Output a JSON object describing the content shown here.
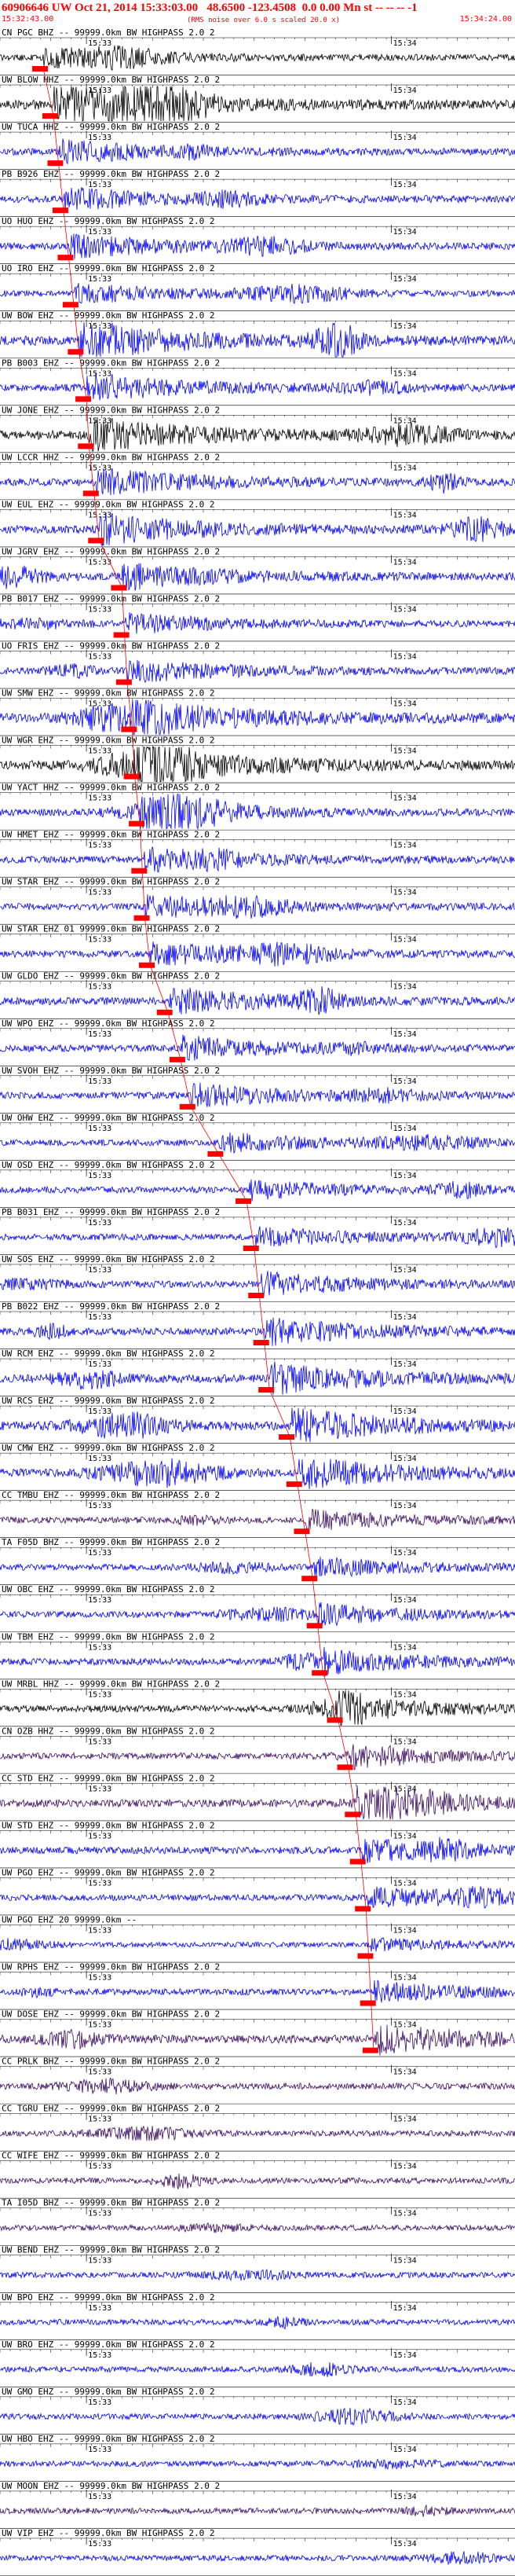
{
  "header": {
    "title": "60906646 UW Oct 21, 2014 15:33:03.00   48.6500 -123.4508  0.0 0.00 Mn st -- -- -- -1",
    "right_marker": "-1",
    "start_time": "15:32:43.00",
    "note": "(RMS noise over 6.0 s scaled 20.0 x)",
    "end_time": "15:34:24.00"
  },
  "chart_data": {
    "type": "line",
    "title": "60906646 UW Oct 21, 2014 15:33:03.00   48.6500 -123.4508  0.0 0.00 Mn st -- -- -- -1",
    "x_range": [
      "15:32:43.00",
      "15:34:24.00"
    ],
    "x_range_seconds": [
      0,
      101
    ],
    "tick_labels": [
      "15:33",
      "15:34"
    ],
    "pick_color": "#ff0000",
    "colors": {
      "black": "#000000",
      "blue": "#0000ff",
      "purple": "#3c0a64"
    },
    "traces": [
      {
        "label": "CN PGC BHZ -- 99999.0km BW HIGHPASS 2.0 2",
        "color": "black",
        "amp": 0.5,
        "pick": 8.5
      },
      {
        "label": "UW BLOW HHZ -- 99999.0km BW HIGHPASS 2.0 2",
        "color": "black",
        "amp": 1.0,
        "pick": 10.5
      },
      {
        "label": "UW TUCA HHZ -- 99999.0km BW HIGHPASS 2.0 2",
        "color": "blue",
        "amp": 0.6,
        "pick": 11.5
      },
      {
        "label": "PB B926 EHZ -- 99999.0km BW HIGHPASS 2.0 2",
        "color": "blue",
        "amp": 0.6,
        "pick": 12.5
      },
      {
        "label": "UO HUO EHZ -- 99999.0km BW HIGHPASS 2.0 2",
        "color": "blue",
        "amp": 0.6,
        "pick": 13.5
      },
      {
        "label": "UO IRO EHZ -- 99999.0km BW HIGHPASS 2.0 2",
        "color": "blue",
        "amp": 0.5,
        "pick": 14.5
      },
      {
        "label": "UW BOW EHZ -- 99999.0km BW HIGHPASS 2.0 2",
        "color": "blue",
        "amp": 1.0,
        "pick": 15.5
      },
      {
        "label": "PB B003 EHZ -- 99999.0km BW HIGHPASS 2.0 2",
        "color": "blue",
        "amp": 0.7,
        "pick": 17.0
      },
      {
        "label": "UW JONE EHZ -- 99999.0km BW HIGHPASS 2.0 2",
        "color": "black",
        "amp": 0.9,
        "pick": 17.5
      },
      {
        "label": "UW LCCR HHZ -- 99999.0km BW HIGHPASS 2.0 2",
        "color": "blue",
        "amp": 0.7,
        "pick": 18.5
      },
      {
        "label": "UW EUL EHZ -- 99999.0km BW HIGHPASS 2.0 2",
        "color": "blue",
        "amp": 0.8,
        "pick": 19.5
      },
      {
        "label": "UW JGRV EHZ -- 99999.0km BW HIGHPASS 2.0 2",
        "color": "blue",
        "amp": 0.7,
        "pick": 24.0
      },
      {
        "label": "PB B017 EHZ -- 99999.0km BW HIGHPASS 2.0 2",
        "color": "blue",
        "amp": 0.5,
        "pick": 24.5
      },
      {
        "label": "UO FRIS EHZ -- 99999.0km BW HIGHPASS 2.0 2",
        "color": "blue",
        "amp": 0.6,
        "pick": 25.0
      },
      {
        "label": "UW SMW EHZ -- 99999.0km BW HIGHPASS 2.0 2",
        "color": "blue",
        "amp": 1.0,
        "pick": 26.0
      },
      {
        "label": "UW WGR EHZ -- 99999.0km BW HIGHPASS 2.0 2",
        "color": "black",
        "amp": 1.0,
        "pick": 26.5
      },
      {
        "label": "UW YACT HHZ -- 99999.0km BW HIGHPASS 2.0 2",
        "color": "blue",
        "amp": 0.6,
        "pick": 27.5
      },
      {
        "label": "UW HMET EHZ -- 99999.0km BW HIGHPASS 2.0 2",
        "color": "blue",
        "amp": 0.6,
        "pick": 28.0
      },
      {
        "label": "UW STAR EHZ -- 99999.0km BW HIGHPASS 2.0 2",
        "color": "blue",
        "amp": 0.6,
        "pick": 28.5
      },
      {
        "label": "UW STAR EHZ 01 99999.0km BW HIGHPASS 2.0 2",
        "color": "blue",
        "amp": 0.6,
        "pick": 29.5
      },
      {
        "label": "UW GLDO EHZ -- 99999.0km BW HIGHPASS 2.0 2",
        "color": "blue",
        "amp": 0.7,
        "pick": 33.0
      },
      {
        "label": "UW WPO EHZ -- 99999.0km BW HIGHPASS 2.0 2",
        "color": "blue",
        "amp": 0.6,
        "pick": 35.5
      },
      {
        "label": "UW SVOH EHZ -- 99999.0km BW HIGHPASS 2.0 2",
        "color": "blue",
        "amp": 0.6,
        "pick": 37.5
      },
      {
        "label": "UW OHW EHZ -- 99999.0km BW HIGHPASS 2.0 2",
        "color": "blue",
        "amp": 0.5,
        "pick": 43.0
      },
      {
        "label": "UW OSD EHZ -- 99999.0km BW HIGHPASS 2.0 2",
        "color": "blue",
        "amp": 0.5,
        "pick": 48.5
      },
      {
        "label": "PB B031 EHZ -- 99999.0km BW HIGHPASS 2.0 2",
        "color": "blue",
        "amp": 0.5,
        "pick": 50.0
      },
      {
        "label": "UW SOS EHZ -- 99999.0km BW HIGHPASS 2.0 2",
        "color": "blue",
        "amp": 0.6,
        "pick": 51.0
      },
      {
        "label": "PB B022 EHZ -- 99999.0km BW HIGHPASS 2.0 2",
        "color": "blue",
        "amp": 0.7,
        "pick": 52.0
      },
      {
        "label": "UW RCM EHZ -- 99999.0km BW HIGHPASS 2.0 2",
        "color": "blue",
        "amp": 0.8,
        "pick": 53.0
      },
      {
        "label": "UW RCS EHZ -- 99999.0km BW HIGHPASS 2.0 2",
        "color": "blue",
        "amp": 0.9,
        "pick": 57.0
      },
      {
        "label": "UW CMW EHZ -- 99999.0km BW HIGHPASS 2.0 2",
        "color": "blue",
        "amp": 0.8,
        "pick": 58.5
      },
      {
        "label": "CC TMBU EHZ -- 99999.0km BW HIGHPASS 2.0 2",
        "color": "purple",
        "amp": 0.5,
        "pick": 60.0
      },
      {
        "label": "TA F05D BHZ -- 99999.0km BW HIGHPASS 2.0 2",
        "color": "blue",
        "amp": 0.5,
        "pick": 61.5
      },
      {
        "label": "UW OBC EHZ -- 99999.0km BW HIGHPASS 2.0 2",
        "color": "blue",
        "amp": 0.5,
        "pick": 62.5
      },
      {
        "label": "UW TBM EHZ -- 99999.0km BW HIGHPASS 2.0 2",
        "color": "blue",
        "amp": 0.6,
        "pick": 63.5
      },
      {
        "label": "UW MRBL HHZ -- 99999.0km BW HIGHPASS 2.0 2",
        "color": "black",
        "amp": 0.6,
        "pick": 66.5
      },
      {
        "label": "CN OZB HHZ -- 99999.0km BW HIGHPASS 2.0 2",
        "color": "purple",
        "amp": 0.5,
        "pick": 68.5
      },
      {
        "label": "CC STD EHZ -- 99999.0km BW HIGHPASS 2.0 2",
        "color": "purple",
        "amp": 0.7,
        "pick": 70.0
      },
      {
        "label": "UW STD EHZ -- 99999.0km BW HIGHPASS 2.0 2",
        "color": "blue",
        "amp": 0.6,
        "pick": 71.0
      },
      {
        "label": "UW PGO EHZ -- 99999.0km BW HIGHPASS 2.0 2",
        "color": "blue",
        "amp": 0.5,
        "pick": 72.0
      },
      {
        "label": "UW PGO EHZ 20 99999.0km --",
        "color": "blue",
        "amp": 0.3,
        "pick": 72.5
      },
      {
        "label": "UW RPHS EHZ -- 99999.0km BW HIGHPASS 2.0 2",
        "color": "blue",
        "amp": 0.5,
        "pick": 73.0
      },
      {
        "label": "UW DOSE EHZ -- 99999.0km BW HIGHPASS 2.0 2",
        "color": "purple",
        "amp": 0.8,
        "pick": 73.5
      },
      {
        "label": "CC PRLK BHZ -- 99999.0km BW HIGHPASS 2.0 2",
        "color": "purple",
        "amp": 0.5,
        "pick": null
      },
      {
        "label": "CC TGRU EHZ -- 99999.0km BW HIGHPASS 2.0 2",
        "color": "purple",
        "amp": 0.4,
        "pick": null
      },
      {
        "label": "CC WIFE EHZ -- 99999.0km BW HIGHPASS 2.0 2",
        "color": "purple",
        "amp": 0.4,
        "pick": null
      },
      {
        "label": "TA I05D BHZ -- 99999.0km BW HIGHPASS 2.0 2",
        "color": "purple",
        "amp": 0.4,
        "pick": null
      },
      {
        "label": "UW BEND EHZ -- 99999.0km BW HIGHPASS 2.0 2",
        "color": "blue",
        "amp": 0.4,
        "pick": null
      },
      {
        "label": "UW BPO EHZ -- 99999.0km BW HIGHPASS 2.0 2",
        "color": "blue",
        "amp": 0.4,
        "pick": null
      },
      {
        "label": "UW BRO EHZ -- 99999.0km BW HIGHPASS 2.0 2",
        "color": "blue",
        "amp": 0.4,
        "pick": null
      },
      {
        "label": "UW GMO EHZ -- 99999.0km BW HIGHPASS 2.0 2",
        "color": "blue",
        "amp": 0.4,
        "pick": null
      },
      {
        "label": "UW HBO EHZ -- 99999.0km BW HIGHPASS 2.0 2",
        "color": "blue",
        "amp": 0.4,
        "pick": null
      },
      {
        "label": "UW MOON EHZ -- 99999.0km BW HIGHPASS 2.0 2",
        "color": "purple",
        "amp": 0.4,
        "pick": null
      },
      {
        "label": "UW VIP EHZ -- 99999.0km BW HIGHPASS 2.0 2",
        "color": "blue",
        "amp": 0.4,
        "pick": null
      }
    ]
  }
}
